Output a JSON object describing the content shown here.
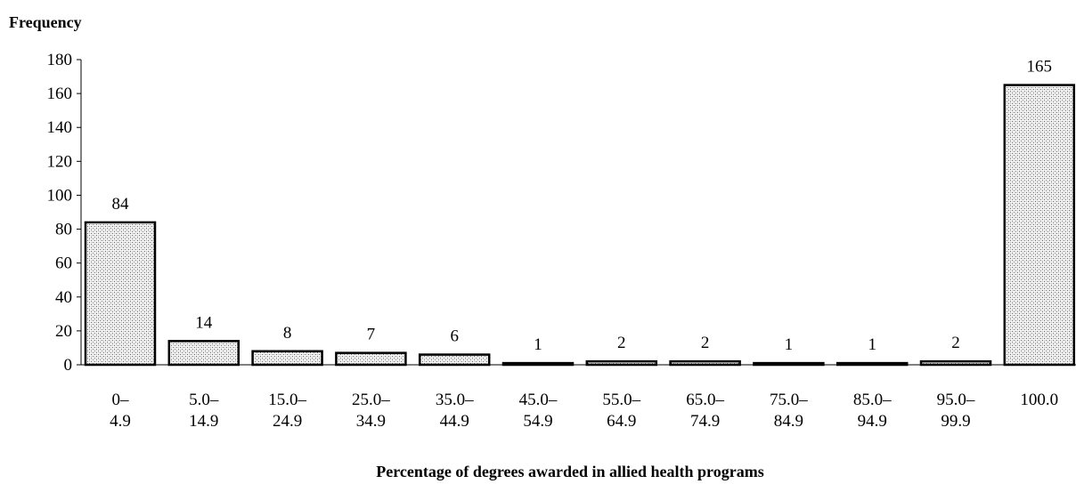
{
  "chart_data": {
    "type": "bar",
    "title": "",
    "ylabel": "Frequency",
    "xlabel": "Percentage of degrees awarded in allied health programs",
    "ylim": [
      0,
      180
    ],
    "yticks": [
      0,
      20,
      40,
      60,
      80,
      100,
      120,
      140,
      160,
      180
    ],
    "categories": [
      [
        "0–",
        "4.9"
      ],
      [
        "5.0–",
        "14.9"
      ],
      [
        "15.0–",
        "24.9"
      ],
      [
        "25.0–",
        "34.9"
      ],
      [
        "35.0–",
        "44.9"
      ],
      [
        "45.0–",
        "54.9"
      ],
      [
        "55.0–",
        "64.9"
      ],
      [
        "65.0–",
        "74.9"
      ],
      [
        "75.0–",
        "84.9"
      ],
      [
        "85.0–",
        "94.9"
      ],
      [
        "95.0–",
        "99.9"
      ],
      [
        "100.0"
      ]
    ],
    "values": [
      84,
      14,
      8,
      7,
      6,
      1,
      2,
      2,
      1,
      1,
      2,
      165
    ],
    "data_labels": [
      "84",
      "14",
      "8",
      "7",
      "6",
      "1",
      "2",
      "2",
      "1",
      "1",
      "2",
      "165"
    ],
    "grid": false,
    "legend": "none",
    "bar_fill": "stippled-gray",
    "bar_color": "#d9d9d9",
    "edge_color": "#000000"
  }
}
